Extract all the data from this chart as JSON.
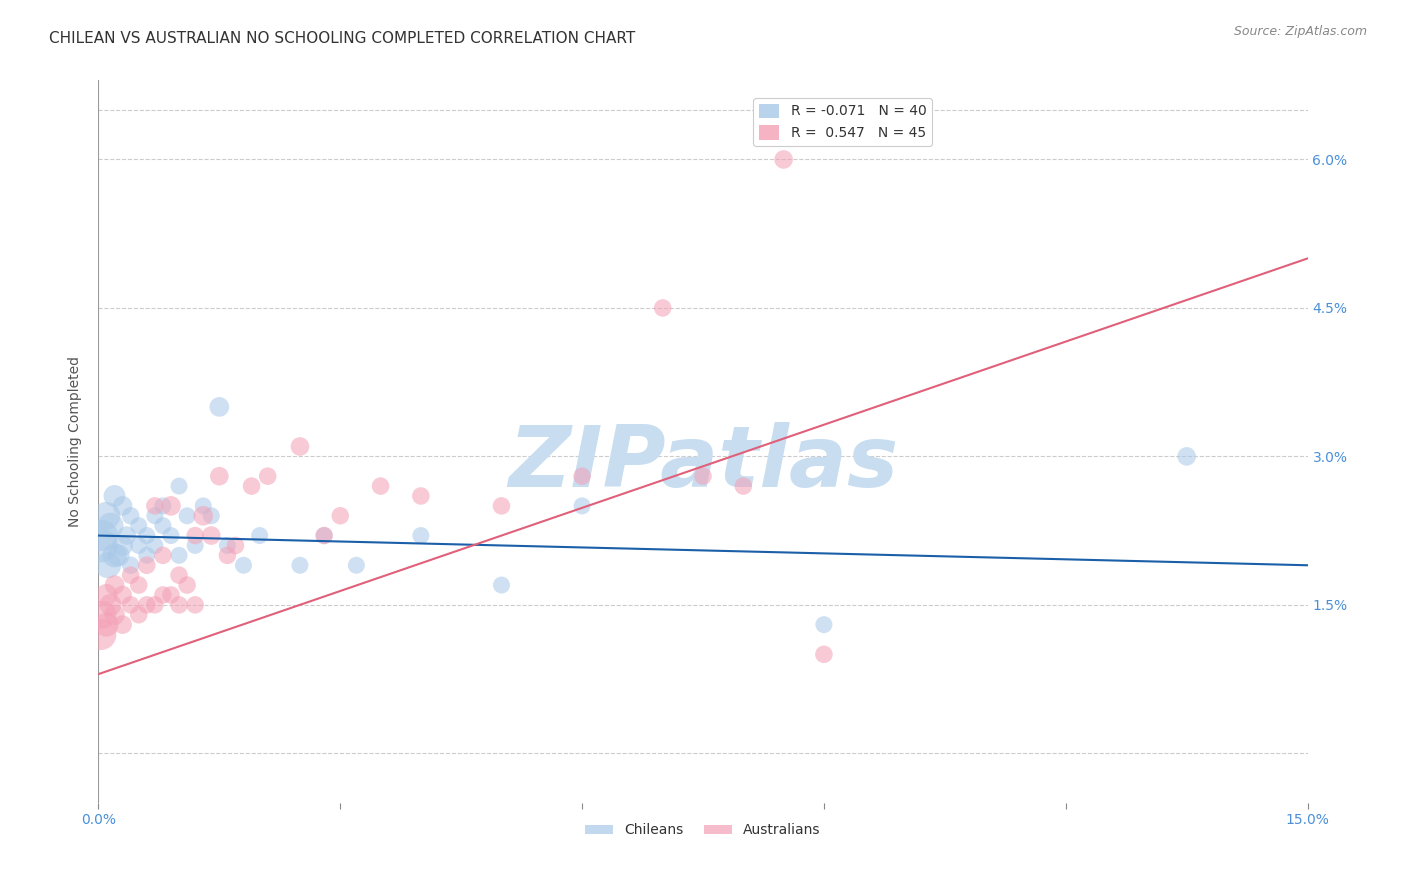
{
  "title": "CHILEAN VS AUSTRALIAN NO SCHOOLING COMPLETED CORRELATION CHART",
  "source": "Source: ZipAtlas.com",
  "ylabel": "No Schooling Completed",
  "xlim": [
    0.0,
    0.15
  ],
  "ylim": [
    -0.005,
    0.068
  ],
  "xticks": [
    0.0,
    0.03,
    0.06,
    0.09,
    0.12,
    0.15
  ],
  "xtick_labels": [
    "0.0%",
    "",
    "",
    "",
    "",
    "15.0%"
  ],
  "yticks": [
    0.0,
    0.015,
    0.03,
    0.045,
    0.06
  ],
  "ytick_labels": [
    "",
    "1.5%",
    "3.0%",
    "4.5%",
    "6.0%"
  ],
  "legend_entries": [
    {
      "label": "R = -0.071   N = 40",
      "color": "#a8c8e8"
    },
    {
      "label": "R =  0.547   N = 45",
      "color": "#f4a0b5"
    }
  ],
  "chileans_x": [
    0.0003,
    0.0005,
    0.001,
    0.0012,
    0.0015,
    0.002,
    0.002,
    0.0025,
    0.003,
    0.003,
    0.0035,
    0.004,
    0.004,
    0.005,
    0.005,
    0.006,
    0.006,
    0.007,
    0.007,
    0.008,
    0.008,
    0.009,
    0.01,
    0.01,
    0.011,
    0.012,
    0.013,
    0.014,
    0.015,
    0.016,
    0.018,
    0.02,
    0.025,
    0.028,
    0.032,
    0.04,
    0.05,
    0.06,
    0.09,
    0.135
  ],
  "chileans_y": [
    0.021,
    0.022,
    0.024,
    0.019,
    0.023,
    0.02,
    0.026,
    0.02,
    0.021,
    0.025,
    0.022,
    0.019,
    0.024,
    0.021,
    0.023,
    0.022,
    0.02,
    0.024,
    0.021,
    0.023,
    0.025,
    0.022,
    0.027,
    0.02,
    0.024,
    0.021,
    0.025,
    0.024,
    0.035,
    0.021,
    0.019,
    0.022,
    0.019,
    0.022,
    0.019,
    0.022,
    0.017,
    0.025,
    0.013,
    0.03
  ],
  "chileans_sizes": [
    600,
    500,
    400,
    350,
    350,
    300,
    250,
    250,
    220,
    200,
    180,
    160,
    160,
    150,
    150,
    150,
    150,
    150,
    150,
    150,
    150,
    150,
    150,
    150,
    150,
    150,
    150,
    150,
    200,
    150,
    150,
    150,
    150,
    150,
    150,
    150,
    150,
    150,
    150,
    180
  ],
  "australians_x": [
    0.0003,
    0.0005,
    0.001,
    0.001,
    0.0015,
    0.002,
    0.002,
    0.003,
    0.003,
    0.004,
    0.004,
    0.005,
    0.005,
    0.006,
    0.006,
    0.007,
    0.007,
    0.008,
    0.008,
    0.009,
    0.009,
    0.01,
    0.01,
    0.011,
    0.012,
    0.012,
    0.013,
    0.014,
    0.015,
    0.016,
    0.017,
    0.019,
    0.021,
    0.025,
    0.028,
    0.03,
    0.035,
    0.04,
    0.05,
    0.06,
    0.07,
    0.075,
    0.08,
    0.085,
    0.09
  ],
  "australians_y": [
    0.012,
    0.014,
    0.013,
    0.016,
    0.015,
    0.014,
    0.017,
    0.013,
    0.016,
    0.015,
    0.018,
    0.014,
    0.017,
    0.015,
    0.019,
    0.015,
    0.025,
    0.016,
    0.02,
    0.016,
    0.025,
    0.015,
    0.018,
    0.017,
    0.015,
    0.022,
    0.024,
    0.022,
    0.028,
    0.02,
    0.021,
    0.027,
    0.028,
    0.031,
    0.022,
    0.024,
    0.027,
    0.026,
    0.025,
    0.028,
    0.045,
    0.028,
    0.027,
    0.06,
    0.01
  ],
  "australians_sizes": [
    500,
    400,
    300,
    250,
    250,
    220,
    200,
    180,
    180,
    160,
    160,
    160,
    160,
    160,
    160,
    160,
    160,
    160,
    160,
    160,
    200,
    160,
    160,
    160,
    160,
    160,
    200,
    180,
    180,
    160,
    160,
    160,
    160,
    180,
    160,
    160,
    160,
    160,
    160,
    160,
    160,
    160,
    160,
    180,
    160
  ],
  "blue_line_x": [
    0.0,
    0.15
  ],
  "blue_line_y": [
    0.022,
    0.019
  ],
  "pink_line_x": [
    0.0,
    0.15
  ],
  "pink_line_y": [
    0.008,
    0.05
  ],
  "blue_line_color": "#1a5fa8",
  "pink_line_color": "#e0607a",
  "chilean_color": "#a8c8e8",
  "australian_color": "#f4a0b5",
  "watermark": "ZIPatlas",
  "watermark_color": "#c8ddf0",
  "title_fontsize": 11,
  "axis_label_fontsize": 10,
  "tick_fontsize": 10,
  "legend_fontsize": 10,
  "source_fontsize": 9,
  "background_color": "#ffffff",
  "grid_color": "#cccccc"
}
